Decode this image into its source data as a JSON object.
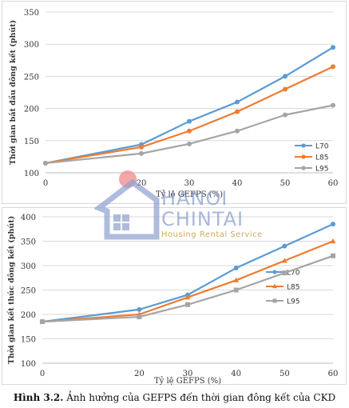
{
  "caption": {
    "label": "Hình 3.2.",
    "text": "Ảnh hưởng của GEFPS đến thời gian đông kết của CKD"
  },
  "watermark": {
    "line1": "HANOI",
    "line2": "CHINTAI",
    "line3": "Housing Rental Service"
  },
  "colors": {
    "L70": "#5b9bd5",
    "L85": "#ed7d31",
    "L95": "#a5a5a5"
  },
  "chart_data": [
    {
      "type": "line",
      "title": "",
      "xlabel": "Tỷ lệ GEFPS (%)",
      "ylabel": "Thời gian bắt đầu đông kết (phút)",
      "x": [
        0,
        20,
        30,
        40,
        50,
        60
      ],
      "xlim": [
        0,
        60
      ],
      "ylim": [
        100,
        350
      ],
      "yticks": [
        100,
        150,
        200,
        250,
        300,
        350
      ],
      "grid": "horizontal",
      "legend": "bottom-right",
      "series": [
        {
          "name": "L70",
          "values": [
            115,
            144,
            180,
            210,
            250,
            295
          ]
        },
        {
          "name": "L85",
          "values": [
            115,
            140,
            165,
            195,
            230,
            265
          ]
        },
        {
          "name": "L95",
          "values": [
            115,
            130,
            145,
            165,
            190,
            205
          ]
        }
      ]
    },
    {
      "type": "line",
      "title": "",
      "xlabel": "Tỷ lệ GEFPS (%)",
      "ylabel": "Thời gian kết thúc đông kết (phút)",
      "x": [
        0,
        20,
        30,
        40,
        50,
        60
      ],
      "xlim": [
        0,
        60
      ],
      "ylim": [
        100,
        400
      ],
      "yticks": [
        100,
        150,
        200,
        250,
        300,
        350,
        400
      ],
      "grid": "horizontal",
      "legend": "right",
      "series": [
        {
          "name": "L70",
          "values": [
            185,
            210,
            240,
            295,
            340,
            385
          ]
        },
        {
          "name": "L85",
          "values": [
            185,
            200,
            235,
            270,
            310,
            350
          ]
        },
        {
          "name": "L95",
          "values": [
            185,
            195,
            220,
            250,
            285,
            320
          ]
        }
      ]
    }
  ]
}
